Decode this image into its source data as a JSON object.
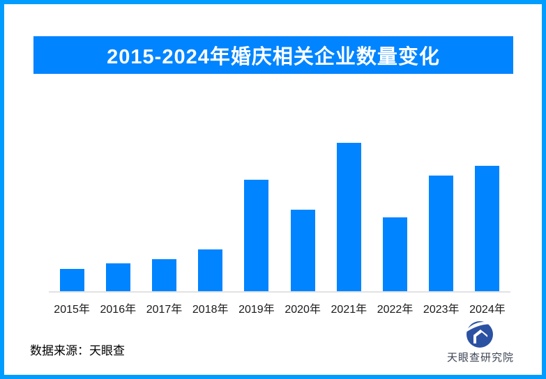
{
  "header": {
    "title": "2015-2024年婚庆相关企业数量变化"
  },
  "chart_data": {
    "type": "bar",
    "title": "2015-2024年婚庆相关企业数量变化",
    "categories": [
      "2015年",
      "2016年",
      "2017年",
      "2018年",
      "2019年",
      "2020年",
      "2021年",
      "2022年",
      "2023年",
      "2024年"
    ],
    "values_relative_pct": [
      15.0,
      18.8,
      21.6,
      28.2,
      75.1,
      54.9,
      100.0,
      49.8,
      77.9,
      84.5
    ],
    "note": "chart shows no y-axis, gridlines or data labels; values are bar heights relative to the tallest bar (2021 = 100)",
    "xlabel": "",
    "ylabel": "",
    "legend_position": "none",
    "grid": false,
    "bar_color": "#0084ff"
  },
  "footer": {
    "source": "数据来源：天眼查",
    "brand": "天眼查研究院"
  },
  "colors": {
    "accent_blue": "#0084ff",
    "border_blue": "#009dff",
    "axis_gray": "#e2e2e2",
    "logo_blue": "#2b51a3",
    "brand_text": "#3c4454"
  },
  "icons": {
    "brand_logo": "tianyancha-eye-house-logo-icon"
  }
}
